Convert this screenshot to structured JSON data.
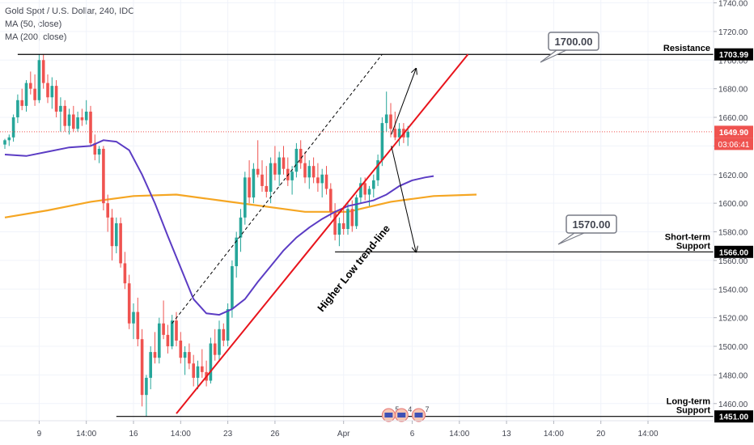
{
  "legend": {
    "title": "Gold Spot / U.S. Dollar, 240, IDC",
    "ma50": "MA (50, close)",
    "ma200": "MA (200, close)"
  },
  "colors": {
    "bull": "#26a69a",
    "bear": "#ef5350",
    "ma50": "#5b3cc4",
    "ma200": "#f5a623",
    "trend_red": "#e8141c",
    "channel_dashed": "#000000",
    "label_box": "#787b86",
    "price_badge": "#ef5350"
  },
  "chart_data": {
    "type": "candlestick",
    "y_axis": {
      "min": 1448,
      "max": 1742,
      "ticks": [
        1460,
        1480,
        1500,
        1520,
        1540,
        1560,
        1580,
        1600,
        1620,
        1640,
        1660,
        1680,
        1700,
        1720,
        1740
      ],
      "tick_labels": [
        "1460.00",
        "1480.00",
        "1500.00",
        "1520.00",
        "1540.00",
        "1560.00",
        "1580.00",
        "1600.00",
        "1620.00",
        "1640.00",
        "1660.00",
        "1680.00",
        "1700.00",
        "1720.00",
        "1740.00"
      ]
    },
    "x_axis": {
      "ticks": [
        {
          "label": "9",
          "i": 8
        },
        {
          "label": "14:00",
          "i": 19
        },
        {
          "label": "16",
          "i": 30
        },
        {
          "label": "14:00",
          "i": 41
        },
        {
          "label": "23",
          "i": 52
        },
        {
          "label": "26",
          "i": 63
        },
        {
          "label": "Apr",
          "i": 79
        },
        {
          "label": "6",
          "i": 95
        },
        {
          "label": "14:00",
          "i": 106
        },
        {
          "label": "13",
          "i": 117
        },
        {
          "label": "14:00",
          "i": 128
        },
        {
          "label": "20",
          "i": 139
        },
        {
          "label": "14:00",
          "i": 150
        }
      ]
    },
    "candles": [
      [
        1641,
        1645,
        1638,
        1644
      ],
      [
        1644,
        1648,
        1640,
        1646
      ],
      [
        1646,
        1662,
        1643,
        1660
      ],
      [
        1660,
        1676,
        1656,
        1672
      ],
      [
        1672,
        1680,
        1665,
        1668
      ],
      [
        1668,
        1686,
        1664,
        1684
      ],
      [
        1684,
        1692,
        1676,
        1680
      ],
      [
        1680,
        1690,
        1668,
        1672
      ],
      [
        1672,
        1704,
        1670,
        1700
      ],
      [
        1700,
        1704,
        1680,
        1684
      ],
      [
        1684,
        1690,
        1670,
        1674
      ],
      [
        1674,
        1688,
        1666,
        1682
      ],
      [
        1682,
        1686,
        1660,
        1664
      ],
      [
        1664,
        1674,
        1650,
        1668
      ],
      [
        1668,
        1672,
        1650,
        1654
      ],
      [
        1654,
        1666,
        1648,
        1662
      ],
      [
        1662,
        1668,
        1650,
        1652
      ],
      [
        1652,
        1664,
        1650,
        1660
      ],
      [
        1660,
        1666,
        1654,
        1658
      ],
      [
        1658,
        1672,
        1655,
        1664
      ],
      [
        1664,
        1668,
        1640,
        1642
      ],
      [
        1642,
        1648,
        1630,
        1634
      ],
      [
        1634,
        1640,
        1628,
        1638
      ],
      [
        1638,
        1640,
        1595,
        1600
      ],
      [
        1600,
        1606,
        1580,
        1590
      ],
      [
        1590,
        1596,
        1560,
        1570
      ],
      [
        1570,
        1590,
        1565,
        1586
      ],
      [
        1586,
        1590,
        1555,
        1558
      ],
      [
        1558,
        1566,
        1540,
        1544
      ],
      [
        1544,
        1550,
        1512,
        1516
      ],
      [
        1516,
        1530,
        1505,
        1524
      ],
      [
        1524,
        1534,
        1500,
        1505
      ],
      [
        1505,
        1512,
        1458,
        1466
      ],
      [
        1466,
        1480,
        1451,
        1478
      ],
      [
        1478,
        1500,
        1470,
        1496
      ],
      [
        1496,
        1510,
        1488,
        1492
      ],
      [
        1492,
        1520,
        1488,
        1516
      ],
      [
        1516,
        1532,
        1505,
        1508
      ],
      [
        1508,
        1515,
        1495,
        1500
      ],
      [
        1500,
        1522,
        1498,
        1518
      ],
      [
        1518,
        1524,
        1500,
        1504
      ],
      [
        1504,
        1510,
        1488,
        1492
      ],
      [
        1492,
        1500,
        1480,
        1496
      ],
      [
        1496,
        1502,
        1484,
        1488
      ],
      [
        1488,
        1494,
        1472,
        1478
      ],
      [
        1478,
        1490,
        1470,
        1486
      ],
      [
        1486,
        1498,
        1478,
        1482
      ],
      [
        1482,
        1490,
        1472,
        1476
      ],
      [
        1476,
        1506,
        1474,
        1502
      ],
      [
        1502,
        1512,
        1490,
        1494
      ],
      [
        1494,
        1518,
        1490,
        1512
      ],
      [
        1512,
        1516,
        1500,
        1504
      ],
      [
        1504,
        1530,
        1500,
        1526
      ],
      [
        1526,
        1560,
        1520,
        1556
      ],
      [
        1556,
        1580,
        1548,
        1576
      ],
      [
        1576,
        1596,
        1566,
        1590
      ],
      [
        1590,
        1622,
        1585,
        1618
      ],
      [
        1618,
        1630,
        1600,
        1604
      ],
      [
        1604,
        1628,
        1600,
        1624
      ],
      [
        1624,
        1644,
        1618,
        1620
      ],
      [
        1620,
        1630,
        1608,
        1612
      ],
      [
        1612,
        1626,
        1604,
        1608
      ],
      [
        1608,
        1632,
        1600,
        1628
      ],
      [
        1628,
        1640,
        1616,
        1620
      ],
      [
        1620,
        1636,
        1612,
        1632
      ],
      [
        1632,
        1640,
        1620,
        1624
      ],
      [
        1624,
        1632,
        1612,
        1616
      ],
      [
        1616,
        1626,
        1606,
        1622
      ],
      [
        1622,
        1642,
        1618,
        1638
      ],
      [
        1638,
        1644,
        1624,
        1628
      ],
      [
        1628,
        1636,
        1614,
        1618
      ],
      [
        1618,
        1630,
        1610,
        1626
      ],
      [
        1626,
        1632,
        1614,
        1618
      ],
      [
        1618,
        1628,
        1608,
        1614
      ],
      [
        1614,
        1624,
        1604,
        1620
      ],
      [
        1620,
        1626,
        1606,
        1610
      ],
      [
        1610,
        1614,
        1590,
        1594
      ],
      [
        1594,
        1600,
        1574,
        1578
      ],
      [
        1578,
        1590,
        1570,
        1586
      ],
      [
        1586,
        1598,
        1578,
        1582
      ],
      [
        1582,
        1600,
        1578,
        1596
      ],
      [
        1596,
        1602,
        1580,
        1584
      ],
      [
        1584,
        1606,
        1582,
        1604
      ],
      [
        1604,
        1618,
        1600,
        1614
      ],
      [
        1614,
        1618,
        1602,
        1606
      ],
      [
        1606,
        1612,
        1598,
        1610
      ],
      [
        1610,
        1620,
        1604,
        1616
      ],
      [
        1616,
        1634,
        1612,
        1630
      ],
      [
        1630,
        1660,
        1626,
        1656
      ],
      [
        1656,
        1678,
        1650,
        1662
      ],
      [
        1662,
        1670,
        1646,
        1652
      ],
      [
        1652,
        1664,
        1644,
        1646
      ],
      [
        1646,
        1656,
        1640,
        1652
      ],
      [
        1652,
        1656,
        1642,
        1646
      ],
      [
        1646,
        1654,
        1640,
        1650
      ]
    ],
    "ma50": [
      [
        0,
        1634
      ],
      [
        5,
        1633
      ],
      [
        10,
        1636
      ],
      [
        15,
        1639
      ],
      [
        20,
        1640
      ],
      [
        23,
        1644
      ],
      [
        26,
        1643
      ],
      [
        29,
        1637
      ],
      [
        32,
        1620
      ],
      [
        35,
        1600
      ],
      [
        38,
        1577
      ],
      [
        41,
        1555
      ],
      [
        44,
        1533
      ],
      [
        47,
        1523
      ],
      [
        50,
        1522
      ],
      [
        53,
        1526
      ],
      [
        56,
        1533
      ],
      [
        59,
        1545
      ],
      [
        62,
        1556
      ],
      [
        65,
        1567
      ],
      [
        68,
        1576
      ],
      [
        71,
        1583
      ],
      [
        74,
        1589
      ],
      [
        77,
        1594
      ],
      [
        80,
        1598
      ],
      [
        83,
        1600
      ],
      [
        86,
        1602
      ],
      [
        89,
        1606
      ],
      [
        92,
        1612
      ],
      [
        95,
        1616
      ],
      [
        98,
        1618
      ],
      [
        100,
        1619
      ]
    ],
    "ma200": [
      [
        0,
        1590
      ],
      [
        10,
        1595
      ],
      [
        20,
        1601
      ],
      [
        30,
        1605
      ],
      [
        40,
        1606
      ],
      [
        50,
        1602
      ],
      [
        60,
        1598
      ],
      [
        70,
        1594
      ],
      [
        80,
        1594
      ],
      [
        90,
        1601
      ],
      [
        100,
        1605
      ],
      [
        110,
        1606
      ]
    ],
    "levels": [
      {
        "name": "resistance",
        "value": 1703.99,
        "badge": "1703.99",
        "label": "Resistance",
        "from_i": 3
      },
      {
        "name": "short-term-support",
        "value": 1566.0,
        "badge": "1566.00",
        "label": "Short-term\nSupport",
        "from_i": 77
      },
      {
        "name": "long-term-support",
        "value": 1451.0,
        "badge": "1451.00",
        "label": "Long-term\nSupport",
        "from_i": 26
      }
    ],
    "current_price": {
      "value": 1649.9,
      "badge": "1649.90",
      "countdown": "03:06:41"
    },
    "trendline": {
      "from": [
        40,
        1453
      ],
      "to": [
        108,
        1704
      ],
      "label": "Higher Low trend-line"
    },
    "channel": {
      "from": [
        39,
        1516
      ],
      "to": [
        88,
        1704
      ]
    },
    "targets": [
      {
        "label": "1700.00",
        "arrow_to": [
          94,
          1694
        ],
        "arrow_from": [
          89,
          1648
        ]
      },
      {
        "label": "1570.00",
        "arrow_to": [
          94,
          1566
        ],
        "arrow_from": [
          89,
          1640
        ]
      }
    ],
    "events": [
      {
        "count": "5",
        "i": 88
      },
      {
        "count": "4",
        "i": 91
      },
      {
        "count": "7",
        "i": 95
      }
    ]
  }
}
